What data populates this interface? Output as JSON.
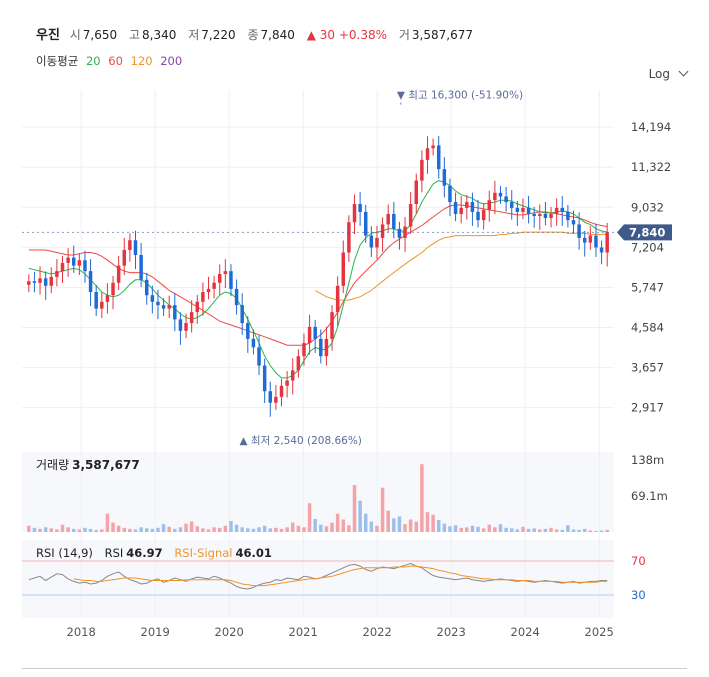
{
  "header": {
    "name": "우진",
    "open_label": "시",
    "open": "7,650",
    "high_label": "고",
    "high": "8,340",
    "low_label": "저",
    "low": "7,220",
    "close_label": "종",
    "close": "7,840",
    "change_arrow": "▲",
    "change": "30",
    "change_pct": "+0.38%",
    "volume_label": "거",
    "volume": "3,587,677"
  },
  "ma_legend": {
    "label": "이동평균",
    "items": [
      {
        "period": "20",
        "color": "#2db34a"
      },
      {
        "period": "60",
        "color": "#f04848"
      },
      {
        "period": "120",
        "color": "#f0932b"
      },
      {
        "period": "200",
        "color": "#8e44ad"
      }
    ]
  },
  "scale_toggle": "Log",
  "current_price_tag": "7,840",
  "annotations": {
    "max_text": "▼ 최고 16,300 (-51.90%)",
    "min_text": "▲ 최저 2,540 (208.66%)"
  },
  "volume_panel": {
    "label": "거래량",
    "value": "3,587,677",
    "ticks": [
      "138m",
      "69.1m"
    ]
  },
  "rsi_panel": {
    "label": "RSI (14,9)",
    "rsi_label": "RSI",
    "rsi_value": "46.97",
    "signal_label": "RSI-Signal",
    "signal_value": "46.01",
    "levels": [
      "70",
      "30"
    ]
  },
  "colors": {
    "up": "#e5333f",
    "down": "#1e6ad6",
    "ma20": "#2db34a",
    "ma60": "#f04848",
    "ma120": "#f0932b",
    "rsi": "#888888",
    "signal": "#f0932b"
  },
  "chart_data": {
    "type": "candlestick",
    "scale": "log",
    "y_ticks": [
      14194,
      11322,
      9032,
      7204,
      5747,
      4584,
      3657,
      2917
    ],
    "ylim": [
      2350,
      17500
    ],
    "x_ticks": [
      "2018",
      "2019",
      "2020",
      "2021",
      "2022",
      "2023",
      "2024",
      "2025"
    ],
    "x_tick_positions": [
      2018,
      2019,
      2020,
      2021,
      2022,
      2023,
      2024,
      2025
    ],
    "xlim": [
      2017.2,
      2025.2
    ],
    "max": {
      "value": 16300,
      "date": 2022.32
    },
    "min": {
      "value": 2540,
      "date": 2020.18
    },
    "last_close": 7840,
    "closes": [
      5950,
      5900,
      6050,
      5800,
      6100,
      6300,
      6600,
      6800,
      6500,
      6700,
      6300,
      5600,
      5100,
      5300,
      5500,
      5900,
      6500,
      7100,
      7500,
      6900,
      6000,
      5500,
      5300,
      5200,
      5100,
      5200,
      4800,
      4500,
      4700,
      5000,
      5300,
      5600,
      5700,
      5900,
      6200,
      6300,
      5700,
      5200,
      4700,
      4300,
      4100,
      3700,
      3200,
      3000,
      3100,
      3300,
      3400,
      3600,
      3900,
      4200,
      4600,
      4300,
      3900,
      4300,
      5000,
      5800,
      7000,
      8300,
      9200,
      8800,
      7700,
      7200,
      7600,
      8200,
      8700,
      8000,
      7600,
      8100,
      9200,
      10500,
      11800,
      12600,
      12800,
      11200,
      10200,
      9300,
      8700,
      9000,
      9300,
      8800,
      8400,
      8900,
      9400,
      9800,
      9600,
      9300,
      9000,
      8800,
      9000,
      8700,
      8600,
      8700,
      8500,
      8700,
      9000,
      8800,
      8400,
      8200,
      7600,
      7400,
      7700,
      7200,
      7000,
      7840
    ],
    "ma20": [
      6400,
      6350,
      6300,
      6250,
      6200,
      6250,
      6300,
      6350,
      6400,
      6350,
      6200,
      6000,
      5800,
      5600,
      5500,
      5450,
      5500,
      5650,
      5850,
      6000,
      6000,
      5900,
      5700,
      5500,
      5350,
      5200,
      5100,
      4950,
      4850,
      4800,
      4850,
      4950,
      5100,
      5300,
      5500,
      5600,
      5550,
      5400,
      5100,
      4800,
      4500,
      4200,
      3900,
      3700,
      3550,
      3450,
      3450,
      3500,
      3600,
      3800,
      4000,
      4100,
      4050,
      4050,
      4200,
      4600,
      5200,
      5900,
      6700,
      7300,
      7600,
      7800,
      7850,
      7900,
      8000,
      8000,
      7900,
      7900,
      8200,
      8700,
      9300,
      9800,
      10300,
      10500,
      10400,
      10200,
      9900,
      9700,
      9600,
      9500,
      9300,
      9200,
      9250,
      9300,
      9400,
      9400,
      9350,
      9200,
      9100,
      9000,
      8900,
      8800,
      8750,
      8750,
      8800,
      8850,
      8800,
      8700,
      8500,
      8300,
      8200,
      8000,
      7900,
      7850
    ],
    "ma60": [
      7100,
      7100,
      7100,
      7100,
      7050,
      7000,
      6950,
      6900,
      6900,
      6950,
      7000,
      7000,
      6950,
      6850,
      6700,
      6550,
      6400,
      6300,
      6250,
      6250,
      6250,
      6200,
      6100,
      5950,
      5800,
      5650,
      5550,
      5450,
      5350,
      5250,
      5150,
      5050,
      4950,
      4850,
      4750,
      4700,
      4650,
      4600,
      4550,
      4500,
      4450,
      4400,
      4350,
      4300,
      4250,
      4200,
      4150,
      4150,
      4150,
      4150,
      4200,
      4300,
      4400,
      4550,
      4750,
      5000,
      5300,
      5600,
      5900,
      6100,
      6300,
      6500,
      6700,
      6950,
      7200,
      7400,
      7550,
      7700,
      7850,
      8000,
      8150,
      8350,
      8550,
      8750,
      8950,
      9100,
      9150,
      9150,
      9100,
      9050,
      9000,
      8950,
      8900,
      8850,
      8800,
      8750,
      8700,
      8650,
      8650,
      8700,
      8750,
      8800,
      8800,
      8750,
      8700,
      8650,
      8600,
      8550,
      8500,
      8400,
      8300,
      8200,
      8150,
      8100
    ],
    "ma120": [
      null,
      null,
      null,
      null,
      null,
      null,
      null,
      null,
      null,
      null,
      null,
      null,
      null,
      null,
      null,
      null,
      null,
      null,
      null,
      null,
      null,
      null,
      null,
      null,
      null,
      null,
      null,
      null,
      null,
      null,
      null,
      null,
      null,
      null,
      null,
      null,
      null,
      null,
      null,
      null,
      null,
      null,
      null,
      null,
      null,
      null,
      null,
      null,
      null,
      null,
      null,
      5650,
      5550,
      5450,
      5400,
      5350,
      5350,
      5350,
      5400,
      5450,
      5550,
      5650,
      5800,
      5950,
      6100,
      6250,
      6400,
      6550,
      6700,
      6850,
      7000,
      7200,
      7350,
      7500,
      7600,
      7650,
      7700,
      7700,
      7700,
      7700,
      7700,
      7700,
      7700,
      7700,
      7750,
      7750,
      7800,
      7800,
      7850,
      7850,
      7850,
      7850,
      7850,
      7850,
      7850,
      7850,
      7800,
      7800,
      7800,
      7800,
      7750,
      7750,
      7750,
      7750
    ],
    "volume": [
      1.2,
      0.8,
      0.6,
      0.9,
      0.7,
      0.5,
      1.4,
      0.9,
      0.6,
      0.5,
      0.8,
      0.6,
      0.4,
      0.5,
      3.5,
      1.8,
      1.2,
      0.8,
      0.6,
      0.5,
      0.9,
      0.7,
      0.6,
      0.8,
      1.5,
      1.0,
      0.6,
      0.9,
      1.6,
      2.0,
      1.1,
      0.7,
      0.5,
      0.9,
      0.8,
      1.2,
      2.1,
      1.4,
      0.9,
      0.7,
      0.6,
      0.9,
      1.2,
      0.7,
      0.8,
      0.6,
      0.9,
      1.8,
      1.2,
      0.9,
      5.5,
      2.5,
      1.4,
      1.1,
      1.8,
      3.5,
      2.4,
      1.3,
      9.0,
      6.0,
      3.5,
      2.0,
      1.2,
      8.5,
      4.1,
      2.6,
      3.0,
      1.5,
      2.4,
      2.0,
      13.0,
      3.8,
      3.3,
      2.3,
      1.6,
      1.1,
      1.3,
      0.8,
      0.9,
      1.2,
      1.0,
      0.7,
      1.4,
      0.9,
      1.5,
      0.8,
      0.7,
      0.5,
      1.0,
      0.6,
      0.7,
      0.5,
      0.6,
      0.8,
      0.5,
      0.4,
      1.3,
      0.5,
      0.4,
      0.6,
      0.3,
      0.2,
      0.3,
      0.4
    ],
    "rsi": [
      48,
      50,
      52,
      47,
      51,
      55,
      54,
      49,
      46,
      44,
      45,
      43,
      44,
      47,
      52,
      55,
      57,
      52,
      48,
      46,
      43,
      44,
      47,
      49,
      45,
      47,
      50,
      48,
      46,
      49,
      51,
      50,
      49,
      52,
      50,
      47,
      44,
      40,
      38,
      37,
      39,
      42,
      44,
      45,
      48,
      47,
      50,
      49,
      48,
      52,
      51,
      49,
      50,
      53,
      56,
      59,
      62,
      65,
      66,
      64,
      60,
      58,
      61,
      63,
      62,
      61,
      63,
      65,
      67,
      64,
      62,
      57,
      53,
      51,
      50,
      49,
      48,
      49,
      50,
      48,
      47,
      46,
      47,
      48,
      49,
      48,
      47,
      46,
      47,
      46,
      45,
      46,
      47,
      46,
      45,
      44,
      45,
      46,
      44,
      45,
      46,
      46,
      47,
      46.97
    ],
    "signal": [
      null,
      null,
      null,
      null,
      null,
      null,
      null,
      null,
      49,
      48,
      47,
      47,
      46,
      46,
      47,
      48,
      49,
      50,
      50,
      50,
      49,
      48,
      47,
      47,
      47,
      47,
      47,
      47,
      48,
      48,
      48,
      48,
      48,
      48,
      48,
      48,
      47,
      45,
      43,
      42,
      41,
      41,
      41,
      42,
      43,
      44,
      45,
      46,
      47,
      48,
      49,
      49,
      50,
      51,
      52,
      54,
      56,
      58,
      60,
      61,
      62,
      62,
      62,
      62,
      62,
      63,
      63,
      63,
      64,
      64,
      63,
      62,
      61,
      59,
      58,
      56,
      55,
      53,
      52,
      51,
      50,
      49,
      49,
      48,
      48,
      48,
      48,
      47,
      47,
      47,
      46,
      46,
      46,
      46,
      46,
      45,
      45,
      45,
      45,
      45,
      45,
      45,
      46,
      46.01
    ],
    "rsi_levels": [
      70,
      30
    ]
  }
}
